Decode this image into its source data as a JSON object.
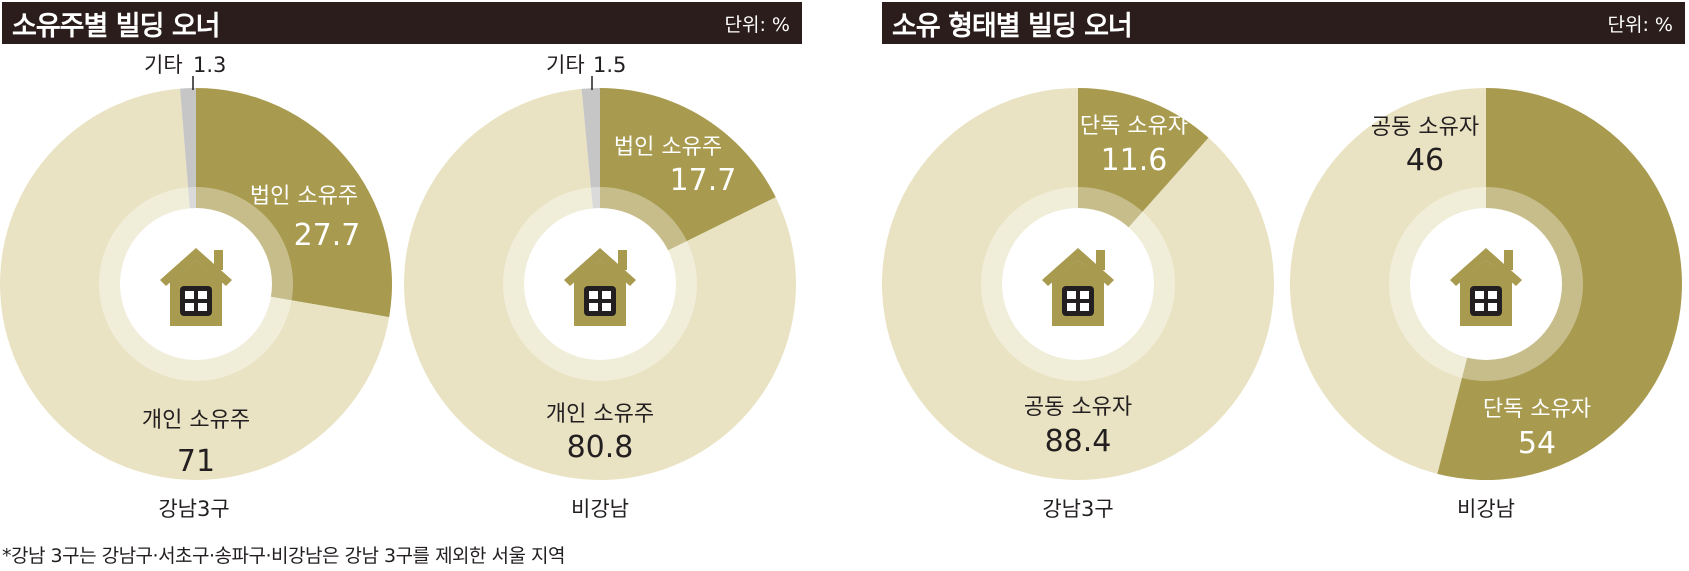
{
  "panels": [
    {
      "title": "소유주별 빌딩 오너",
      "unit": "단위: %"
    },
    {
      "title": "소유 형태별 빌딩 오너",
      "unit": "단위: %"
    }
  ],
  "colors": {
    "dark": "#a89a4e",
    "light": "#e9e3c3",
    "gray": "#c7c6c6",
    "header_bg": "#2a1d1b"
  },
  "icon": "house-icon",
  "chart_data": [
    {
      "type": "pie",
      "title": "소유주별 빌딩 오너",
      "subtitle": "강남3구",
      "slices": [
        {
          "label": "법인 소유주",
          "value": 27.7,
          "color": "#a89a4e"
        },
        {
          "label": "개인 소유주",
          "value": 71,
          "color": "#e9e3c3"
        },
        {
          "label": "기타",
          "value": 1.3,
          "color": "#c7c6c6"
        }
      ]
    },
    {
      "type": "pie",
      "title": "소유주별 빌딩 오너",
      "subtitle": "비강남",
      "slices": [
        {
          "label": "법인 소유주",
          "value": 17.7,
          "color": "#a89a4e"
        },
        {
          "label": "개인 소유주",
          "value": 80.8,
          "color": "#e9e3c3"
        },
        {
          "label": "기타",
          "value": 1.5,
          "color": "#c7c6c6"
        }
      ]
    },
    {
      "type": "pie",
      "title": "소유 형태별 빌딩 오너",
      "subtitle": "강남3구",
      "slices": [
        {
          "label": "단독 소유자",
          "value": 11.6,
          "color": "#a89a4e"
        },
        {
          "label": "공동 소유자",
          "value": 88.4,
          "color": "#e9e3c3"
        }
      ]
    },
    {
      "type": "pie",
      "title": "소유 형태별 빌딩 오너",
      "subtitle": "비강남",
      "slices": [
        {
          "label": "단독 소유자",
          "value": 54,
          "color": "#a89a4e"
        },
        {
          "label": "공동 소유자",
          "value": 46,
          "color": "#e9e3c3"
        }
      ]
    }
  ],
  "footnote": "*강남 3구는 강남구·서초구·송파구·비강남은 강남 3구를 제외한 서울 지역"
}
